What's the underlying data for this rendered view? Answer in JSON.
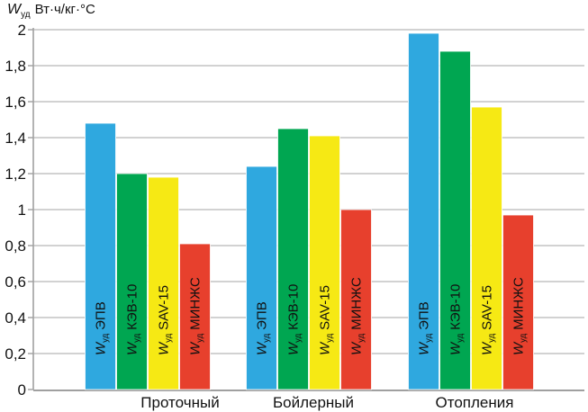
{
  "chart_data": {
    "type": "bar",
    "y_axis_title": {
      "symbol": "W",
      "symbol_sub": "уд",
      "units": "Вт·ч/кг·°С"
    },
    "categories": [
      "Проточный",
      "Бойлерный",
      "Отопления"
    ],
    "series": [
      {
        "name": "ЭПВ",
        "color": "#2FA8DF",
        "values": [
          1.48,
          1.24,
          1.98
        ]
      },
      {
        "name": "КЭВ-10",
        "color": "#00A651",
        "values": [
          1.2,
          1.45,
          1.88
        ]
      },
      {
        "name": "SAV-15",
        "color": "#F6E914",
        "values": [
          1.18,
          1.41,
          1.57
        ]
      },
      {
        "name": "МИНЖС",
        "color": "#E7402D",
        "values": [
          0.81,
          1.0,
          0.97
        ]
      }
    ],
    "bar_label_prefix": {
      "symbol": "W",
      "sub": "уд"
    },
    "ylim": [
      0,
      2
    ],
    "y_tick_step": 0.2,
    "y_tick_labels": [
      "0",
      "0,2",
      "0,4",
      "0,6",
      "0,8",
      "1",
      "1,2",
      "1,4",
      "1,6",
      "1,8",
      "2"
    ],
    "decimal_separator": ",",
    "grid": true,
    "legend_position": "none",
    "colors": {
      "gridline": "#c3c3c3",
      "axis": "#a0a0a0",
      "text": "#111111",
      "background": "#ffffff",
      "bar_separator": "#ffffff"
    }
  }
}
